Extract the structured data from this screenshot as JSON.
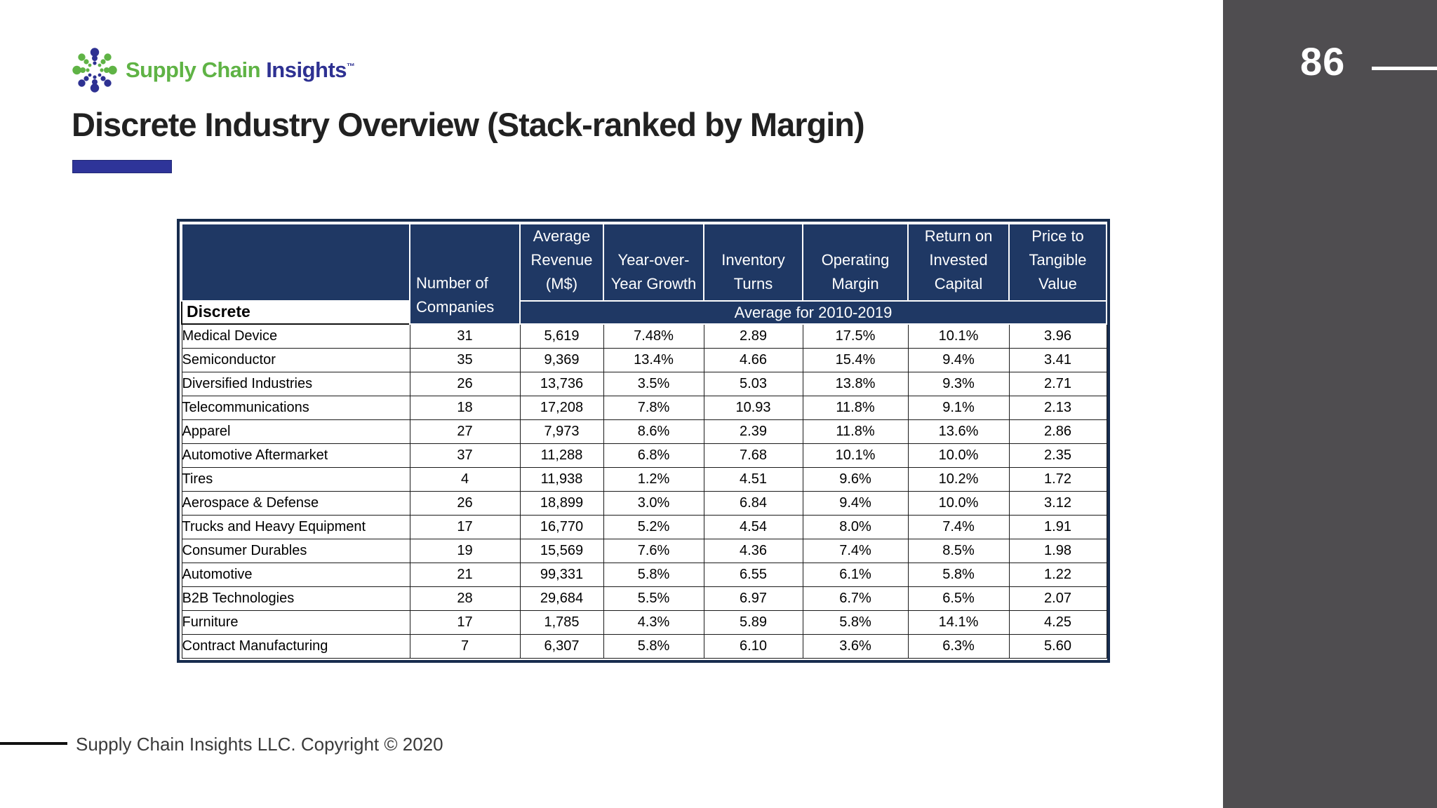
{
  "logo": {
    "brand_green": "Supply Chain ",
    "brand_navy": "Insights",
    "trademark": "™"
  },
  "page": {
    "number": "86"
  },
  "title": {
    "text": "Discrete Industry Overview (Stack-ranked by Margin)"
  },
  "footer": {
    "text": "Supply Chain Insights LLC. Copyright © 2020"
  },
  "colors": {
    "header_navy": "#1f3864",
    "accent_blue_bar": "#2e3499",
    "logo_green": "#5fb345",
    "logo_blue": "#2e3192",
    "sidebar_gray": "#4f4d50"
  },
  "table": {
    "header": {
      "discrete": "Discrete",
      "companies": "Number of\nCompanies",
      "avg_band": "Average for 2010-2019",
      "metrics": [
        "Average\nRevenue\n(M$)",
        "Year-over-\nYear Growth",
        "Inventory\nTurns",
        "Operating\nMargin",
        "Return on\nInvested\nCapital",
        "Price to\nTangible\nValue"
      ]
    },
    "rows": [
      [
        "Medical Device",
        "31",
        "5,619",
        "7.48%",
        "2.89",
        "17.5%",
        "10.1%",
        "3.96"
      ],
      [
        "Semiconductor",
        "35",
        "9,369",
        "13.4%",
        "4.66",
        "15.4%",
        "9.4%",
        "3.41"
      ],
      [
        "Diversified Industries",
        "26",
        "13,736",
        "3.5%",
        "5.03",
        "13.8%",
        "9.3%",
        "2.71"
      ],
      [
        "Telecommunications",
        "18",
        "17,208",
        "7.8%",
        "10.93",
        "11.8%",
        "9.1%",
        "2.13"
      ],
      [
        "Apparel",
        "27",
        "7,973",
        "8.6%",
        "2.39",
        "11.8%",
        "13.6%",
        "2.86"
      ],
      [
        "Automotive Aftermarket",
        "37",
        "11,288",
        "6.8%",
        "7.68",
        "10.1%",
        "10.0%",
        "2.35"
      ],
      [
        "Tires",
        "4",
        "11,938",
        "1.2%",
        "4.51",
        "9.6%",
        "10.2%",
        "1.72"
      ],
      [
        "Aerospace & Defense",
        "26",
        "18,899",
        "3.0%",
        "6.84",
        "9.4%",
        "10.0%",
        "3.12"
      ],
      [
        "Trucks and Heavy Equipment",
        "17",
        "16,770",
        "5.2%",
        "4.54",
        "8.0%",
        "7.4%",
        "1.91"
      ],
      [
        "Consumer Durables",
        "19",
        "15,569",
        "7.6%",
        "4.36",
        "7.4%",
        "8.5%",
        "1.98"
      ],
      [
        "Automotive",
        "21",
        "99,331",
        "5.8%",
        "6.55",
        "6.1%",
        "5.8%",
        "1.22"
      ],
      [
        "B2B Technologies",
        "28",
        "29,684",
        "5.5%",
        "6.97",
        "6.7%",
        "6.5%",
        "2.07"
      ],
      [
        "Furniture",
        "17",
        "1,785",
        "4.3%",
        "5.89",
        "5.8%",
        "14.1%",
        "4.25"
      ],
      [
        "Contract Manufacturing",
        "7",
        "6,307",
        "5.8%",
        "6.10",
        "3.6%",
        "6.3%",
        "5.60"
      ]
    ]
  },
  "chart_data": {
    "type": "table",
    "title": "Discrete Industry Overview (Stack-ranked by Margin)",
    "subtitle": "Average for 2010-2019",
    "columns": [
      "Discrete",
      "Number of Companies",
      "Average Revenue (M$)",
      "Year-over-Year Growth",
      "Inventory Turns",
      "Operating Margin",
      "Return on Invested Capital",
      "Price to Tangible Value"
    ],
    "rows": [
      [
        "Medical Device",
        31,
        5619,
        "7.48%",
        2.89,
        "17.5%",
        "10.1%",
        3.96
      ],
      [
        "Semiconductor",
        35,
        9369,
        "13.4%",
        4.66,
        "15.4%",
        "9.4%",
        3.41
      ],
      [
        "Diversified Industries",
        26,
        13736,
        "3.5%",
        5.03,
        "13.8%",
        "9.3%",
        2.71
      ],
      [
        "Telecommunications",
        18,
        17208,
        "7.8%",
        10.93,
        "11.8%",
        "9.1%",
        2.13
      ],
      [
        "Apparel",
        27,
        7973,
        "8.6%",
        2.39,
        "11.8%",
        "13.6%",
        2.86
      ],
      [
        "Automotive Aftermarket",
        37,
        11288,
        "6.8%",
        7.68,
        "10.1%",
        "10.0%",
        2.35
      ],
      [
        "Tires",
        4,
        11938,
        "1.2%",
        4.51,
        "9.6%",
        "10.2%",
        1.72
      ],
      [
        "Aerospace & Defense",
        26,
        18899,
        "3.0%",
        6.84,
        "9.4%",
        "10.0%",
        3.12
      ],
      [
        "Trucks and Heavy Equipment",
        17,
        16770,
        "5.2%",
        4.54,
        "8.0%",
        "7.4%",
        1.91
      ],
      [
        "Consumer Durables",
        19,
        15569,
        "7.6%",
        4.36,
        "7.4%",
        "8.5%",
        1.98
      ],
      [
        "Automotive",
        21,
        99331,
        "5.8%",
        6.55,
        "6.1%",
        "5.8%",
        1.22
      ],
      [
        "B2B Technologies",
        28,
        29684,
        "5.5%",
        6.97,
        "6.7%",
        "6.5%",
        2.07
      ],
      [
        "Furniture",
        17,
        1785,
        "4.3%",
        5.89,
        "5.8%",
        "14.1%",
        4.25
      ],
      [
        "Contract Manufacturing",
        7,
        6307,
        "5.8%",
        6.1,
        "3.6%",
        "6.3%",
        5.6
      ]
    ]
  }
}
